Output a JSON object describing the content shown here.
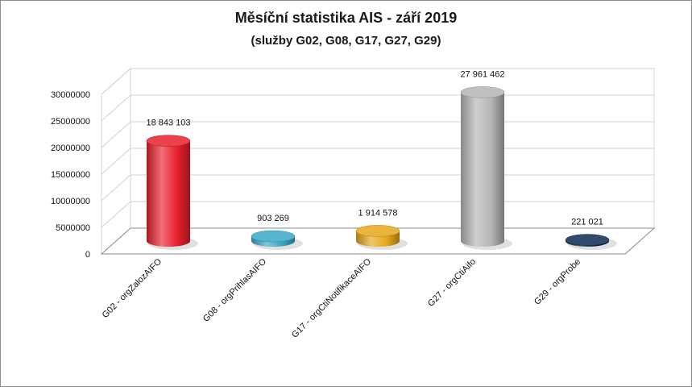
{
  "chart_data": {
    "type": "bar",
    "title": "Měsíční statistika AIS -  září 2019",
    "subtitle": "(služby G02,  G08,  G17, G27, G29)",
    "categories": [
      "G02 - orgZalozAIFO",
      "G08 - orgPrihlasAIFO",
      "G17 - orgCtiNotifikaceAIFO",
      "G27 - orgCtiAifo",
      "G29 - orgProbe"
    ],
    "values": [
      18843103,
      903269,
      1914578,
      27961462,
      221021
    ],
    "value_labels": [
      "18 843 103",
      "903 269",
      "1 914 578",
      "27 961 462",
      "221 021"
    ],
    "colors": [
      "#e8202c",
      "#3aa8c8",
      "#e5a81a",
      "#b5b5b5",
      "#0e2a52"
    ],
    "ylim": [
      0,
      30000000
    ],
    "yticks": [
      "0",
      "5000000",
      "10000000",
      "15000000",
      "20000000",
      "25000000",
      "30000000"
    ],
    "grid": true,
    "style": "3d-cylinder"
  }
}
